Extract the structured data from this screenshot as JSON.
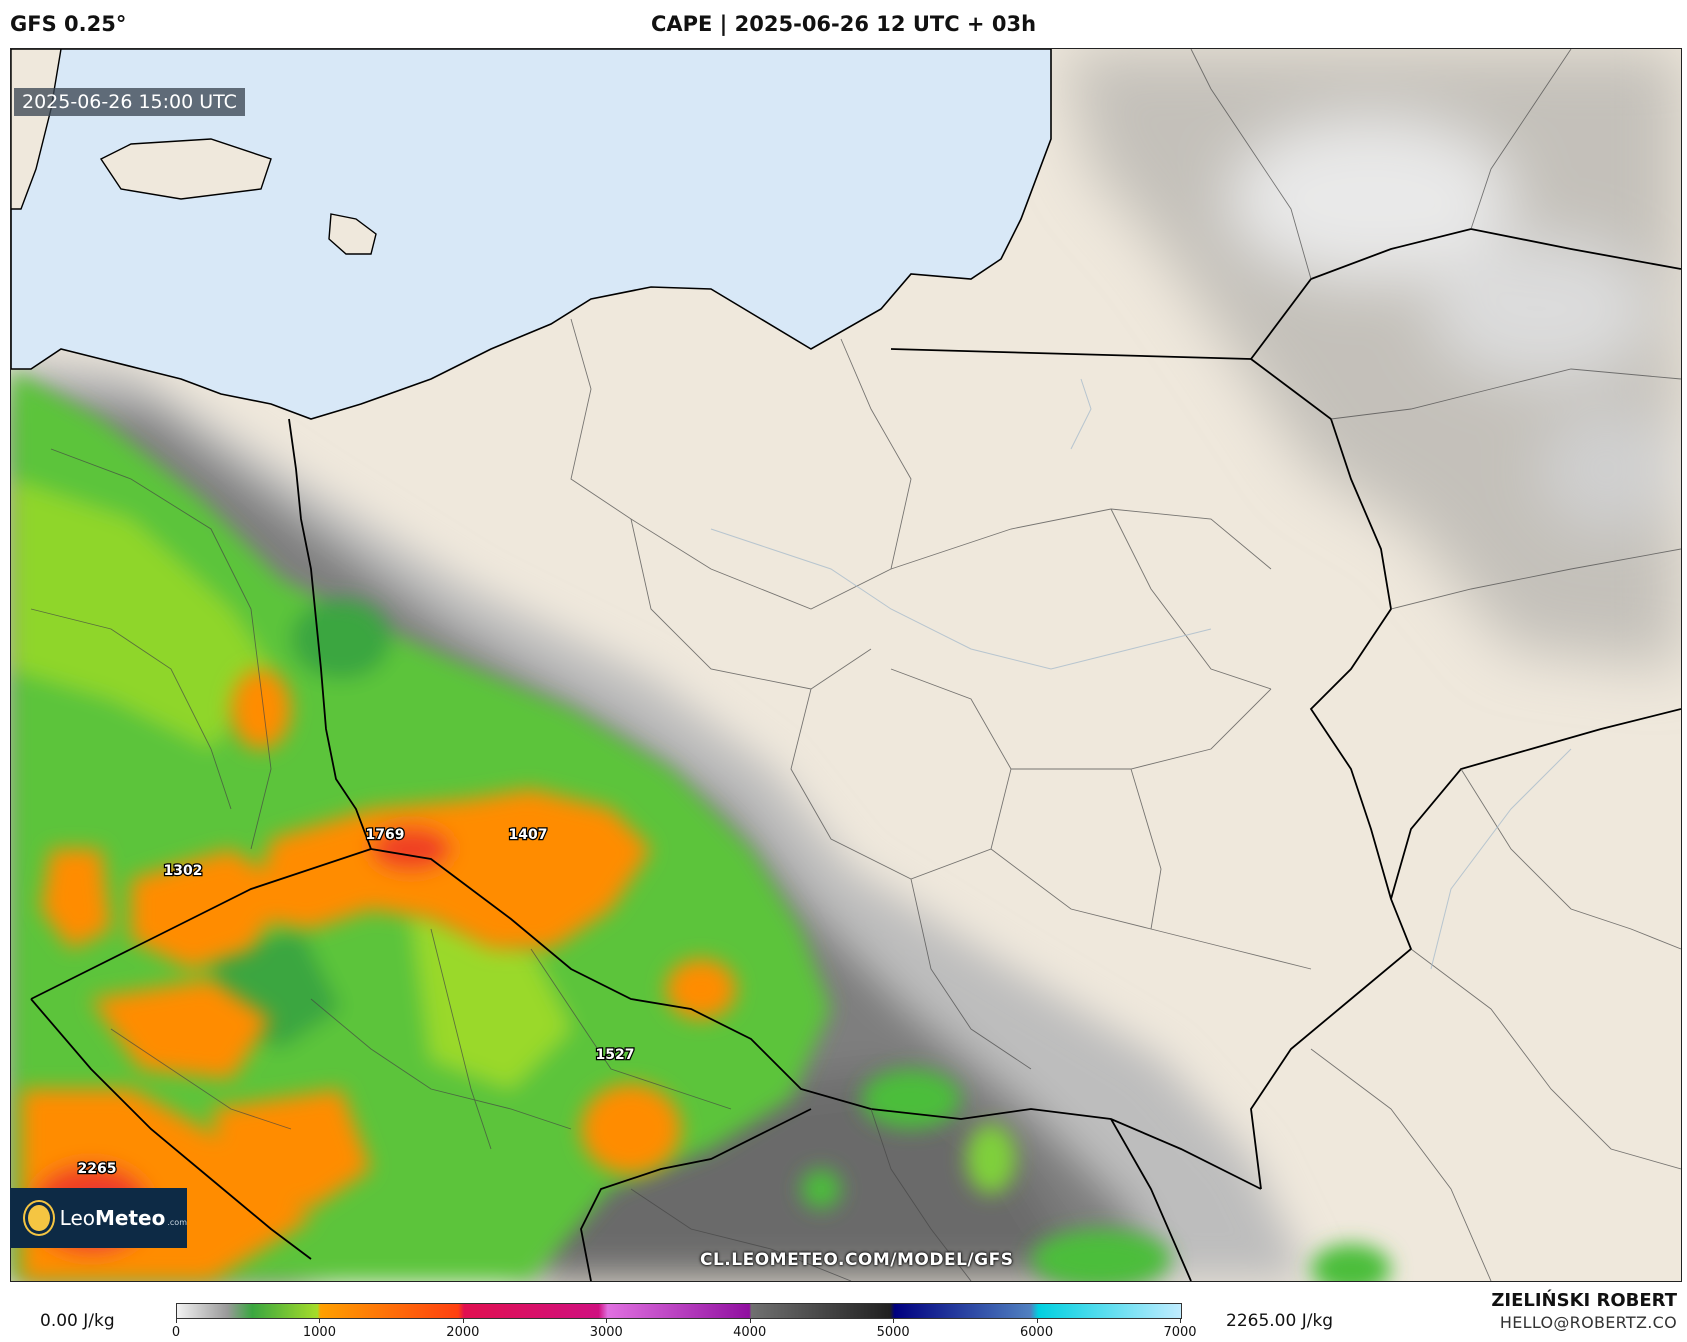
{
  "header": {
    "model": "GFS 0.25°",
    "title": "CAPE | 2025-06-26 12 UTC + 03h"
  },
  "map": {
    "timestamp": "2025-06-26 15:00 UTC",
    "watermark": "CL.LEOMETEO.COM/MODEL/GFS",
    "logo": {
      "brand_light": "Leo",
      "brand_bold": "Meteo",
      "domain": ".com"
    },
    "value_labels": [
      {
        "text": "1769"
      },
      {
        "text": "1407"
      },
      {
        "text": "1302"
      },
      {
        "text": "1527"
      },
      {
        "text": "2265"
      }
    ],
    "colors": {
      "sea": "#d8e8f7",
      "land": "#efe8dc",
      "low_cape": "#8a8a8a",
      "green": "#5cc43a",
      "orange": "#ff8c00",
      "red": "#f04020"
    }
  },
  "legend": {
    "min_label": "0.00 J/kg",
    "max_label": "2265.00 J/kg",
    "scale_max": 7000,
    "ticks": [
      "0",
      "1000",
      "2000",
      "3000",
      "4000",
      "5000",
      "6000",
      "7000"
    ]
  },
  "footer": {
    "author": "ZIELIŃSKI ROBERT",
    "email": "HELLO@ROBERTZ.CO"
  }
}
